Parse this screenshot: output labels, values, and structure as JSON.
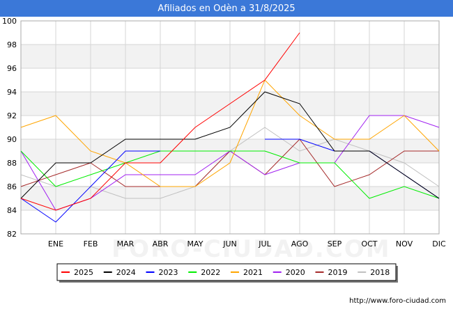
{
  "title": "Afiliados en Odèn a 31/8/2025",
  "watermark": "FORO-CIUDAD.COM",
  "source_url": "http://www.foro-ciudad.com",
  "chart_data": {
    "type": "line",
    "categories": [
      "",
      "ENE",
      "FEB",
      "MAR",
      "ABR",
      "MAY",
      "JUN",
      "JUL",
      "AGO",
      "SEP",
      "OCT",
      "NOV",
      "DIC"
    ],
    "ylim": [
      82,
      100
    ],
    "yticks": [
      82,
      84,
      86,
      88,
      90,
      92,
      94,
      96,
      98,
      100
    ],
    "grid": true,
    "legend_position": "bottom",
    "series": [
      {
        "name": "2025",
        "color": "#ff0000",
        "values": [
          85,
          84,
          85,
          88,
          88,
          91,
          93,
          95,
          99,
          null,
          null,
          null,
          null
        ]
      },
      {
        "name": "2024",
        "color": "#000000",
        "values": [
          85,
          88,
          88,
          90,
          90,
          90,
          91,
          94,
          93,
          89,
          89,
          87,
          85
        ]
      },
      {
        "name": "2023",
        "color": "#0000ff",
        "values": [
          85,
          83,
          86,
          89,
          89,
          null,
          null,
          90,
          90,
          89,
          89,
          87,
          85
        ]
      },
      {
        "name": "2022",
        "color": "#00ee00",
        "values": [
          89,
          86,
          87,
          88,
          89,
          89,
          89,
          89,
          88,
          88,
          85,
          86,
          85
        ]
      },
      {
        "name": "2021",
        "color": "#ffa500",
        "values": [
          91,
          92,
          89,
          88,
          86,
          86,
          88,
          95,
          92,
          90,
          90,
          92,
          89
        ]
      },
      {
        "name": "2020",
        "color": "#a020f0",
        "values": [
          89,
          84,
          85,
          87,
          87,
          87,
          89,
          87,
          88,
          88,
          92,
          92,
          91
        ]
      },
      {
        "name": "2019",
        "color": "#a52a2a",
        "values": [
          86,
          87,
          88,
          86,
          86,
          86,
          89,
          87,
          90,
          86,
          87,
          89,
          89
        ]
      },
      {
        "name": "2018",
        "color": "#c0c0c0",
        "values": [
          87,
          86,
          86,
          85,
          85,
          86,
          89,
          91,
          89,
          90,
          89,
          88,
          86
        ]
      }
    ]
  }
}
